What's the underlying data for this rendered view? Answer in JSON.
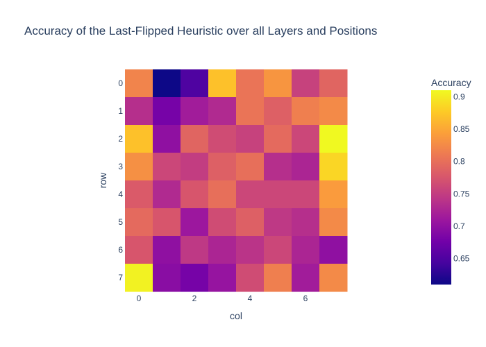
{
  "chart_data": {
    "type": "heatmap",
    "title": "Accuracy of the Last-Flipped Heuristic over all Layers and Positions",
    "xlabel": "col",
    "ylabel": "row",
    "x_ticks": [
      "0",
      "2",
      "4",
      "6"
    ],
    "y_ticks": [
      "0",
      "1",
      "2",
      "3",
      "4",
      "5",
      "6",
      "7"
    ],
    "colorbar": {
      "title": "Accuracy",
      "range": [
        0.61,
        0.91
      ],
      "ticks": [
        "0.65",
        "0.7",
        "0.75",
        "0.8",
        "0.85",
        "0.9"
      ],
      "tick_values": [
        0.65,
        0.7,
        0.75,
        0.8,
        0.85,
        0.9
      ]
    },
    "colorscale": [
      "#0d0887",
      "#46039f",
      "#7201a8",
      "#9c179e",
      "#bd3786",
      "#d8576b",
      "#ed7953",
      "#fb9f3a",
      "#fdca26",
      "#f0f921"
    ],
    "z": [
      [
        0.82,
        0.61,
        0.65,
        0.87,
        0.805,
        0.835,
        0.755,
        0.79
      ],
      [
        0.735,
        0.68,
        0.715,
        0.73,
        0.805,
        0.785,
        0.815,
        0.825
      ],
      [
        0.87,
        0.7,
        0.79,
        0.765,
        0.755,
        0.795,
        0.76,
        0.91
      ],
      [
        0.83,
        0.76,
        0.75,
        0.785,
        0.8,
        0.735,
        0.725,
        0.885
      ],
      [
        0.78,
        0.73,
        0.775,
        0.8,
        0.76,
        0.76,
        0.76,
        0.84
      ],
      [
        0.795,
        0.775,
        0.71,
        0.765,
        0.785,
        0.745,
        0.735,
        0.825
      ],
      [
        0.775,
        0.7,
        0.745,
        0.725,
        0.74,
        0.76,
        0.725,
        0.7
      ],
      [
        0.905,
        0.695,
        0.68,
        0.705,
        0.765,
        0.815,
        0.715,
        0.825
      ]
    ]
  }
}
